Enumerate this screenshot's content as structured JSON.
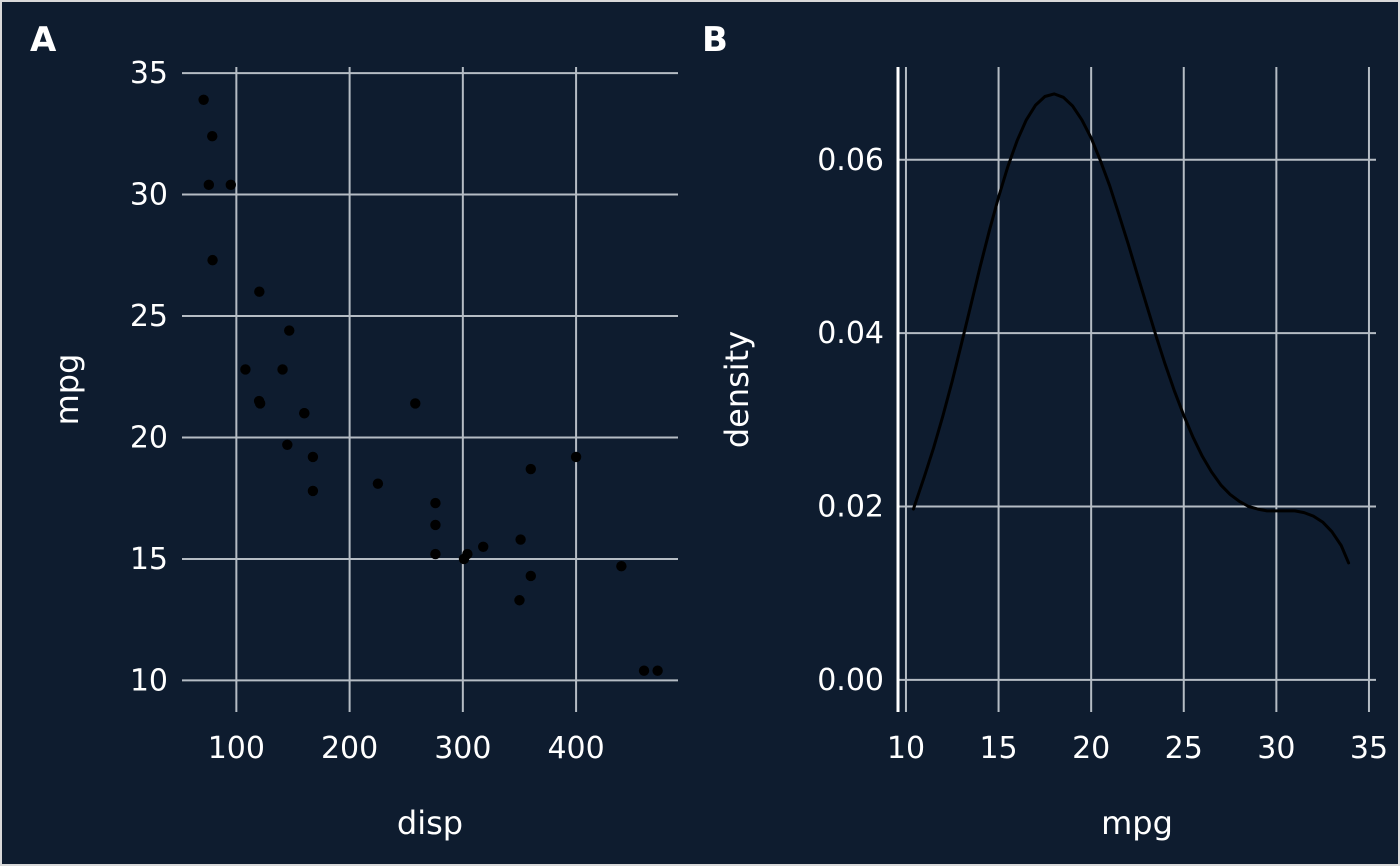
{
  "figure": {
    "background": "#0e1c2f",
    "border_color": "#d9d9d9",
    "divider_color": "#f2f2f2",
    "text_color": "#ffffff",
    "grid_color": "#b5bcc4",
    "point_color": "#000000",
    "curve_color": "#000000",
    "axis_line_color": "#ffffff"
  },
  "chart_data": [
    {
      "type": "scatter",
      "panel": "A",
      "title": "",
      "xlabel": "disp",
      "ylabel": "mpg",
      "xlim": [
        52,
        490
      ],
      "ylim": [
        8.7,
        35.25
      ],
      "xticks": [
        100,
        200,
        300,
        400
      ],
      "yticks": [
        10,
        15,
        20,
        25,
        30,
        35
      ],
      "grid": true,
      "legend": "none",
      "points": [
        [
          160,
          21.0
        ],
        [
          160,
          21.0
        ],
        [
          108,
          22.8
        ],
        [
          258,
          21.4
        ],
        [
          360,
          18.7
        ],
        [
          225,
          18.1
        ],
        [
          360,
          14.3
        ],
        [
          146.7,
          24.4
        ],
        [
          140.8,
          22.8
        ],
        [
          167.6,
          19.2
        ],
        [
          167.6,
          17.8
        ],
        [
          275.8,
          16.4
        ],
        [
          275.8,
          17.3
        ],
        [
          275.8,
          15.2
        ],
        [
          472,
          10.4
        ],
        [
          460,
          10.4
        ],
        [
          440,
          14.7
        ],
        [
          78.7,
          32.4
        ],
        [
          75.7,
          30.4
        ],
        [
          71.1,
          33.9
        ],
        [
          120.1,
          21.5
        ],
        [
          318,
          15.5
        ],
        [
          304,
          15.2
        ],
        [
          350,
          13.3
        ],
        [
          400,
          19.2
        ],
        [
          79,
          27.3
        ],
        [
          120.3,
          26.0
        ],
        [
          95.1,
          30.4
        ],
        [
          351,
          15.8
        ],
        [
          145,
          19.7
        ],
        [
          301,
          15.0
        ],
        [
          121,
          21.4
        ]
      ]
    },
    {
      "type": "line",
      "panel": "B",
      "title": "",
      "xlabel": "mpg",
      "ylabel": "density",
      "xlim": [
        9.57,
        35.38
      ],
      "ylim": [
        -0.0037,
        0.0707
      ],
      "xticks": [
        10,
        15,
        20,
        25,
        30,
        35
      ],
      "yticks": [
        0,
        0.02,
        0.04,
        0.06
      ],
      "ytick_labels": [
        "0.00",
        "0.02",
        "0.04",
        "0.06"
      ],
      "grid": true,
      "legend": "none",
      "curve": [
        [
          10.4,
          0.0197
        ],
        [
          11.0,
          0.0235
        ],
        [
          11.5,
          0.0268
        ],
        [
          12.0,
          0.0305
        ],
        [
          12.5,
          0.0345
        ],
        [
          13.0,
          0.0388
        ],
        [
          13.5,
          0.0432
        ],
        [
          14.0,
          0.0476
        ],
        [
          14.5,
          0.0518
        ],
        [
          15.0,
          0.0557
        ],
        [
          15.5,
          0.0592
        ],
        [
          16.0,
          0.0622
        ],
        [
          16.5,
          0.0646
        ],
        [
          17.0,
          0.0663
        ],
        [
          17.5,
          0.0673
        ],
        [
          18.0,
          0.0676
        ],
        [
          18.5,
          0.0672
        ],
        [
          19.0,
          0.0662
        ],
        [
          19.5,
          0.0646
        ],
        [
          20.0,
          0.0625
        ],
        [
          20.5,
          0.0599
        ],
        [
          21.0,
          0.057
        ],
        [
          21.5,
          0.0537
        ],
        [
          22.0,
          0.0503
        ],
        [
          22.5,
          0.0467
        ],
        [
          23.0,
          0.0432
        ],
        [
          23.5,
          0.0397
        ],
        [
          24.0,
          0.0364
        ],
        [
          24.5,
          0.0333
        ],
        [
          25.0,
          0.0305
        ],
        [
          25.5,
          0.028
        ],
        [
          26.0,
          0.0258
        ],
        [
          26.5,
          0.024
        ],
        [
          27.0,
          0.0225
        ],
        [
          27.5,
          0.0214
        ],
        [
          28.0,
          0.0206
        ],
        [
          28.5,
          0.02
        ],
        [
          29.0,
          0.0197
        ],
        [
          29.5,
          0.0195
        ],
        [
          30.0,
          0.0195
        ],
        [
          30.5,
          0.0195
        ],
        [
          31.0,
          0.0195
        ],
        [
          31.5,
          0.0193
        ],
        [
          32.0,
          0.0189
        ],
        [
          32.5,
          0.0182
        ],
        [
          33.0,
          0.0171
        ],
        [
          33.5,
          0.0155
        ],
        [
          33.9,
          0.0135
        ]
      ]
    }
  ]
}
